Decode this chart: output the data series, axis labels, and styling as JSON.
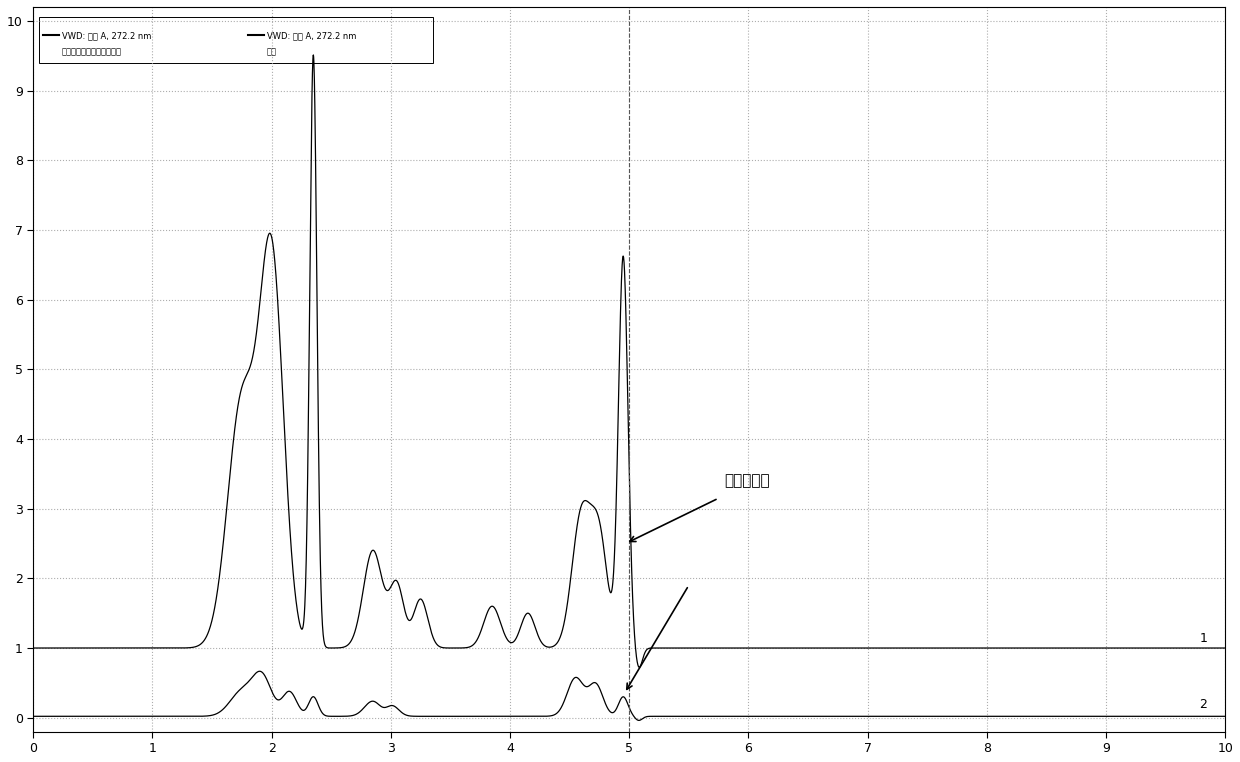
{
  "legend_line1": "VWD: 信号 A, 272.2 nm\n卡巴克络磺酸钠对照品色谱",
  "legend_line2": "VWD: 信号 A, 272.2 nm\n供品",
  "annotation_text": "盐酸氨基脲",
  "label1": "1",
  "label2": "2",
  "xlim": [
    0,
    10
  ],
  "ylim": [
    -0.2,
    10.2
  ],
  "xticks": [
    0,
    1,
    2,
    3,
    4,
    5,
    6,
    7,
    8,
    9,
    10
  ],
  "yticks": [
    0,
    1,
    2,
    3,
    4,
    5,
    6,
    7,
    8,
    9,
    10
  ],
  "background_color": "#ffffff",
  "line_color": "#000000",
  "grid_color": "#aaaaaa",
  "vline_x": 5.0
}
